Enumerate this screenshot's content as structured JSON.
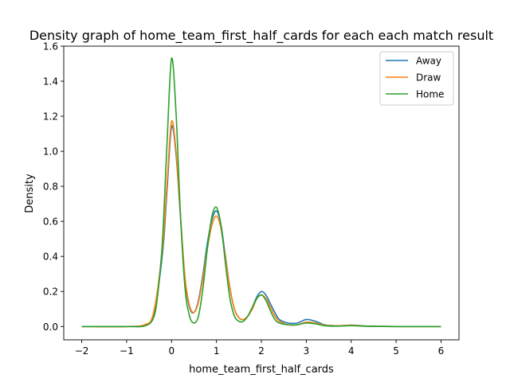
{
  "chart_data": {
    "type": "line",
    "title": "Density graph of home_team_first_half_cards for each each match result",
    "xlabel": "home_team_first_half_cards",
    "ylabel": "Density",
    "xlim": [
      -2.4,
      6.4
    ],
    "ylim": [
      -0.076,
      1.6
    ],
    "x_ticks": [
      -2,
      -1,
      0,
      1,
      2,
      3,
      4,
      5,
      6
    ],
    "y_ticks": [
      0.0,
      0.2,
      0.4,
      0.6,
      0.8,
      1.0,
      1.2,
      1.4,
      1.6
    ],
    "x_tick_labels": [
      "−2",
      "−1",
      "0",
      "1",
      "2",
      "3",
      "4",
      "5",
      "6"
    ],
    "y_tick_labels": [
      "0.0",
      "0.2",
      "0.4",
      "0.6",
      "0.8",
      "1.0",
      "1.2",
      "1.4",
      "1.6"
    ],
    "grid": false,
    "legend_position": "top-right",
    "series": [
      {
        "name": "Away",
        "color": "#1f77b4",
        "x": [
          -2.0,
          -1.0,
          -0.6,
          -0.4,
          -0.2,
          -0.1,
          0.0,
          0.1,
          0.2,
          0.3,
          0.4,
          0.5,
          0.6,
          0.7,
          0.8,
          0.9,
          1.0,
          1.1,
          1.2,
          1.3,
          1.4,
          1.5,
          1.6,
          1.7,
          1.8,
          1.9,
          2.0,
          2.1,
          2.2,
          2.3,
          2.4,
          2.6,
          2.8,
          3.0,
          3.2,
          3.4,
          3.6,
          3.8,
          4.0,
          4.2,
          4.4,
          5.0,
          6.0
        ],
        "y": [
          0.0,
          0.0,
          0.01,
          0.07,
          0.42,
          0.78,
          1.14,
          0.98,
          0.62,
          0.27,
          0.11,
          0.08,
          0.15,
          0.3,
          0.48,
          0.61,
          0.66,
          0.58,
          0.4,
          0.22,
          0.1,
          0.05,
          0.04,
          0.06,
          0.11,
          0.17,
          0.2,
          0.18,
          0.13,
          0.08,
          0.04,
          0.02,
          0.02,
          0.04,
          0.03,
          0.01,
          0.005,
          0.005,
          0.008,
          0.005,
          0.002,
          0.0,
          0.0
        ]
      },
      {
        "name": "Draw",
        "color": "#ff7f0e",
        "x": [
          -2.0,
          -1.0,
          -0.6,
          -0.4,
          -0.2,
          -0.1,
          0.0,
          0.1,
          0.2,
          0.3,
          0.4,
          0.5,
          0.6,
          0.7,
          0.8,
          0.9,
          1.0,
          1.1,
          1.2,
          1.3,
          1.4,
          1.5,
          1.6,
          1.7,
          1.8,
          1.9,
          2.0,
          2.1,
          2.2,
          2.3,
          2.4,
          2.6,
          2.8,
          3.0,
          3.2,
          3.4,
          3.6,
          3.8,
          4.0,
          4.2,
          4.4,
          5.0,
          6.0
        ],
        "y": [
          0.0,
          0.0,
          0.01,
          0.08,
          0.45,
          0.82,
          1.17,
          1.0,
          0.63,
          0.28,
          0.12,
          0.08,
          0.14,
          0.28,
          0.45,
          0.58,
          0.63,
          0.56,
          0.39,
          0.22,
          0.1,
          0.05,
          0.04,
          0.06,
          0.1,
          0.16,
          0.18,
          0.16,
          0.11,
          0.06,
          0.03,
          0.01,
          0.01,
          0.025,
          0.02,
          0.008,
          0.004,
          0.005,
          0.007,
          0.004,
          0.001,
          0.0,
          0.0
        ]
      },
      {
        "name": "Home",
        "color": "#2ca02c",
        "x": [
          -2.0,
          -1.0,
          -0.6,
          -0.4,
          -0.3,
          -0.2,
          -0.1,
          0.0,
          0.1,
          0.2,
          0.3,
          0.4,
          0.5,
          0.6,
          0.7,
          0.8,
          0.9,
          1.0,
          1.1,
          1.2,
          1.3,
          1.4,
          1.5,
          1.6,
          1.7,
          1.8,
          1.9,
          2.0,
          2.1,
          2.2,
          2.3,
          2.4,
          2.6,
          2.8,
          3.0,
          3.2,
          3.4,
          3.6,
          3.8,
          4.0,
          4.2,
          4.4,
          5.0,
          6.0
        ],
        "y": [
          0.0,
          0.0,
          0.003,
          0.05,
          0.2,
          0.5,
          1.05,
          1.53,
          1.22,
          0.63,
          0.22,
          0.06,
          0.02,
          0.06,
          0.22,
          0.45,
          0.63,
          0.68,
          0.58,
          0.36,
          0.16,
          0.06,
          0.03,
          0.03,
          0.06,
          0.11,
          0.16,
          0.18,
          0.15,
          0.09,
          0.04,
          0.02,
          0.01,
          0.01,
          0.02,
          0.015,
          0.005,
          0.002,
          0.003,
          0.005,
          0.003,
          0.001,
          0.0,
          0.0
        ]
      }
    ]
  }
}
